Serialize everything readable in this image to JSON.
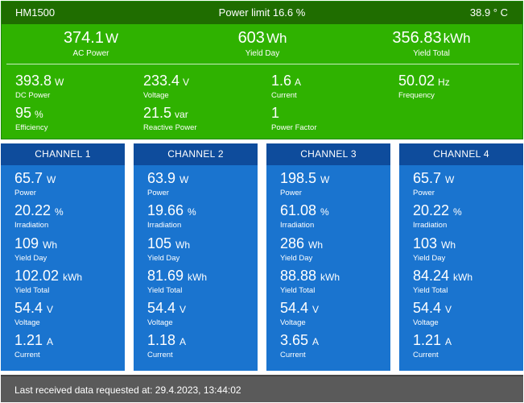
{
  "inverter": {
    "name": "HM1500",
    "power_limit": "Power limit 16.6 %",
    "temperature": "38.9 ° C",
    "summary": [
      {
        "value": "374.1",
        "unit": "W",
        "label": "AC Power"
      },
      {
        "value": "603",
        "unit": "Wh",
        "label": "Yield Day"
      },
      {
        "value": "356.83",
        "unit": "kWh",
        "label": "Yield Total"
      }
    ],
    "details": [
      {
        "value": "393.8",
        "unit": "W",
        "label": "DC Power"
      },
      {
        "value": "233.4",
        "unit": "V",
        "label": "Voltage"
      },
      {
        "value": "1.6",
        "unit": "A",
        "label": "Current"
      },
      {
        "value": "50.02",
        "unit": "Hz",
        "label": "Frequency"
      },
      {
        "value": "95",
        "unit": "%",
        "label": "Efficiency"
      },
      {
        "value": "21.5",
        "unit": "var",
        "label": "Reactive Power"
      },
      {
        "value": "1",
        "unit": "",
        "label": "Power Factor"
      }
    ]
  },
  "channels": [
    {
      "title": "CHANNEL 1",
      "metrics": [
        {
          "value": "65.7",
          "unit": "W",
          "label": "Power"
        },
        {
          "value": "20.22",
          "unit": "%",
          "label": "Irradiation"
        },
        {
          "value": "109",
          "unit": "Wh",
          "label": "Yield Day"
        },
        {
          "value": "102.02",
          "unit": "kWh",
          "label": "Yield Total"
        },
        {
          "value": "54.4",
          "unit": "V",
          "label": "Voltage"
        },
        {
          "value": "1.21",
          "unit": "A",
          "label": "Current"
        }
      ]
    },
    {
      "title": "CHANNEL 2",
      "metrics": [
        {
          "value": "63.9",
          "unit": "W",
          "label": "Power"
        },
        {
          "value": "19.66",
          "unit": "%",
          "label": "Irradiation"
        },
        {
          "value": "105",
          "unit": "Wh",
          "label": "Yield Day"
        },
        {
          "value": "81.69",
          "unit": "kWh",
          "label": "Yield Total"
        },
        {
          "value": "54.4",
          "unit": "V",
          "label": "Voltage"
        },
        {
          "value": "1.18",
          "unit": "A",
          "label": "Current"
        }
      ]
    },
    {
      "title": "CHANNEL 3",
      "metrics": [
        {
          "value": "198.5",
          "unit": "W",
          "label": "Power"
        },
        {
          "value": "61.08",
          "unit": "%",
          "label": "Irradiation"
        },
        {
          "value": "286",
          "unit": "Wh",
          "label": "Yield Day"
        },
        {
          "value": "88.88",
          "unit": "kWh",
          "label": "Yield Total"
        },
        {
          "value": "54.4",
          "unit": "V",
          "label": "Voltage"
        },
        {
          "value": "3.65",
          "unit": "A",
          "label": "Current"
        }
      ]
    },
    {
      "title": "CHANNEL 4",
      "metrics": [
        {
          "value": "65.7",
          "unit": "W",
          "label": "Power"
        },
        {
          "value": "20.22",
          "unit": "%",
          "label": "Irradiation"
        },
        {
          "value": "103",
          "unit": "Wh",
          "label": "Yield Day"
        },
        {
          "value": "84.24",
          "unit": "kWh",
          "label": "Yield Total"
        },
        {
          "value": "54.4",
          "unit": "V",
          "label": "Voltage"
        },
        {
          "value": "1.21",
          "unit": "A",
          "label": "Current"
        }
      ]
    }
  ],
  "footer": {
    "text": "Last received data requested at: 29.4.2023, 13:44:02"
  }
}
